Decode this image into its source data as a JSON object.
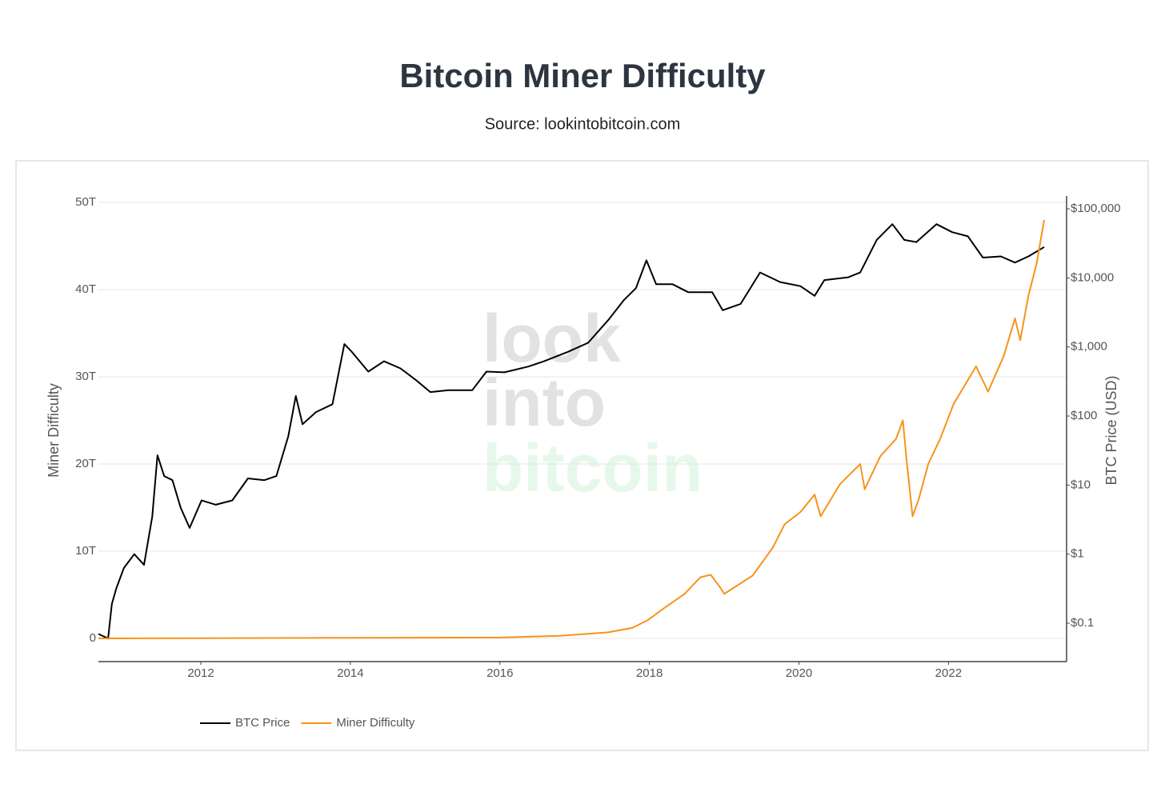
{
  "chart_data": {
    "type": "line",
    "title": "Bitcoin Miner Difficulty",
    "subtitle": "Source: lookintobitcoin.com",
    "watermark": [
      "look",
      "into",
      "bitcoin"
    ],
    "ylabel": "Miner Difficulty",
    "y2label": "BTC Price (USD)",
    "xlim": [
      2010.63,
      2023.58
    ],
    "xticks": [
      2012,
      2014,
      2016,
      2018,
      2020,
      2022
    ],
    "ylim": [
      -2660000000000,
      50000000000000
    ],
    "yticks": [
      0,
      {
        "value": 10000000000000,
        "label": "10T"
      },
      {
        "value": 20000000000000,
        "label": "20T"
      },
      {
        "value": 30000000000000,
        "label": "30T"
      },
      {
        "value": 40000000000000,
        "label": "40T"
      },
      {
        "value": 50000000000000,
        "label": "50T"
      }
    ],
    "y2lim": [
      0.0278,
      124000
    ],
    "y2scale": "log",
    "y2ticks": [
      {
        "value": 0.1,
        "label": "$0.1"
      },
      {
        "value": 1,
        "label": "$1"
      },
      {
        "value": 10,
        "label": "$10"
      },
      {
        "value": 100,
        "label": "$100"
      },
      {
        "value": 1000,
        "label": "$1,000"
      },
      {
        "value": 10000,
        "label": "$10,000"
      },
      {
        "value": 100000,
        "label": "$100,000"
      }
    ],
    "grid": true,
    "legend": "bottom-left",
    "series": [
      {
        "name": "BTC Price",
        "color": "#000000",
        "axis": "y2",
        "x": [
          2010.63,
          2010.76,
          2010.81,
          2010.87,
          2010.97,
          2011.11,
          2011.24,
          2011.35,
          2011.42,
          2011.51,
          2011.62,
          2011.73,
          2011.85,
          2012.01,
          2012.2,
          2012.42,
          2012.63,
          2012.85,
          2013.01,
          2013.17,
          2013.27,
          2013.36,
          2013.54,
          2013.76,
          2013.92,
          2014.02,
          2014.24,
          2014.45,
          2014.67,
          2014.88,
          2015.07,
          2015.31,
          2015.63,
          2015.82,
          2016.06,
          2016.38,
          2016.59,
          2016.91,
          2017.18,
          2017.45,
          2017.66,
          2017.82,
          2017.96,
          2018.09,
          2018.31,
          2018.52,
          2018.84,
          2018.98,
          2019.22,
          2019.48,
          2019.75,
          2020.02,
          2020.21,
          2020.34,
          2020.66,
          2020.82,
          2021.04,
          2021.25,
          2021.41,
          2021.57,
          2021.84,
          2022.05,
          2022.26,
          2022.46,
          2022.7,
          2022.89,
          2023.07,
          2023.28
        ],
        "values": [
          0.07,
          0.06,
          0.19,
          0.32,
          0.63,
          1.0,
          0.7,
          3.5,
          27,
          13.5,
          11.8,
          4.7,
          2.4,
          6,
          5.2,
          6,
          12.5,
          11.8,
          13.5,
          51,
          195,
          76,
          114,
          148,
          1100,
          850,
          440,
          620,
          490,
          330,
          222,
          236,
          236,
          440,
          430,
          520,
          620,
          850,
          1150,
          2450,
          4800,
          7100,
          18000,
          8100,
          8100,
          6200,
          6200,
          3400,
          4200,
          12000,
          8700,
          7600,
          5500,
          9300,
          10200,
          12000,
          35500,
          60000,
          35500,
          33000,
          60000,
          46000,
          40000,
          19700,
          20500,
          16700,
          20500,
          28000
        ]
      },
      {
        "name": "Miner Difficulty",
        "color": "#f7931a",
        "x": [
          2010.63,
          2016.0,
          2016.81,
          2017.45,
          2017.77,
          2017.98,
          2018.2,
          2018.47,
          2018.68,
          2018.82,
          2018.95,
          2019.0,
          2019.38,
          2019.65,
          2019.81,
          2020.02,
          2020.21,
          2020.29,
          2020.55,
          2020.82,
          2020.88,
          2021.09,
          2021.3,
          2021.39,
          2021.44,
          2021.52,
          2021.6,
          2021.73,
          2021.89,
          2022.07,
          2022.37,
          2022.53,
          2022.74,
          2022.89,
          2022.96,
          2023.07,
          2023.18,
          2023.28
        ],
        "values": [
          0,
          100000000000,
          300000000000,
          700000000000,
          1200000000000,
          2100000000000,
          3500000000000,
          5100000000000,
          7000000000000,
          7300000000000,
          5800000000000,
          5100000000000,
          7200000000000,
          10400000000000,
          13100000000000,
          14500000000000,
          16500000000000,
          14000000000000,
          17700000000000,
          20000000000000,
          17100000000000,
          20900000000000,
          22900000000000,
          25000000000000,
          20500000000000,
          14000000000000,
          15900000000000,
          20000000000000,
          22900000000000,
          26900000000000,
          31200000000000,
          28300000000000,
          32400000000000,
          36700000000000,
          34200000000000,
          39300000000000,
          43000000000000,
          48000000000000
        ]
      }
    ]
  }
}
